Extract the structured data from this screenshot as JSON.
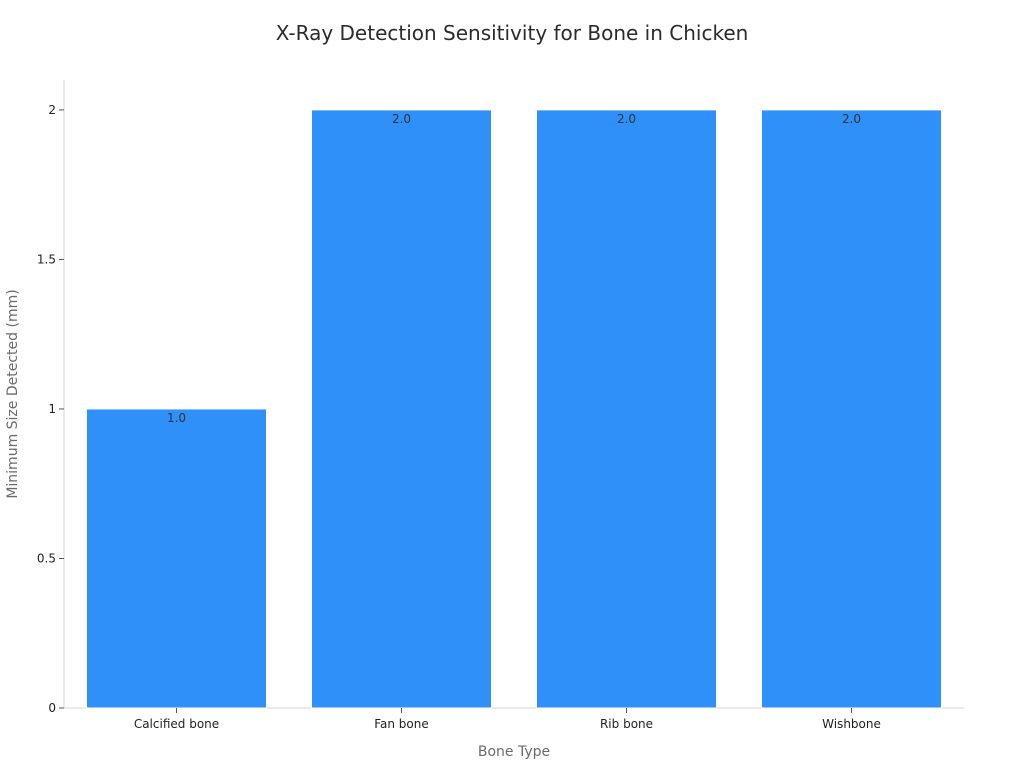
{
  "chart_data": {
    "type": "bar",
    "title": "X-Ray Detection Sensitivity for Bone in Chicken",
    "xlabel": "Bone Type",
    "ylabel": "Minimum Size Detected (mm)",
    "categories": [
      "Calcified bone",
      "Fan bone",
      "Rib bone",
      "Wishbone"
    ],
    "values": [
      1.0,
      2.0,
      2.0,
      2.0
    ],
    "data_labels": [
      "1.0",
      "2.0",
      "2.0",
      "2.0"
    ],
    "ylim": [
      0,
      2.1
    ],
    "yticks": [
      0,
      0.5,
      1,
      1.5,
      2
    ],
    "ytick_labels": [
      "0",
      "0.5",
      "1",
      "1.5",
      "2"
    ],
    "grid": false,
    "bar_color": "#2e90f8"
  }
}
